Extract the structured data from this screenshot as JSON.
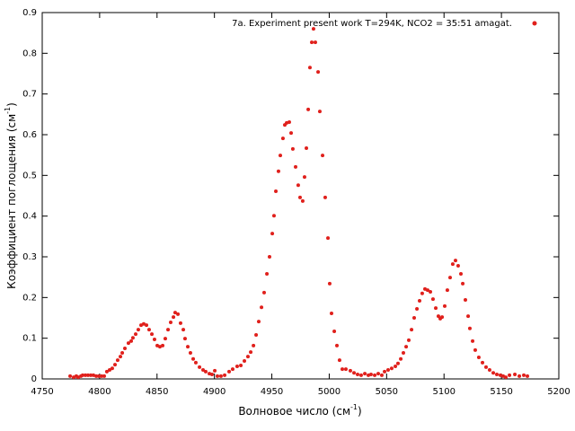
{
  "chart_data": {
    "type": "scatter",
    "xlabel": [
      "Волновое число (см",
      "-1",
      ")"
    ],
    "ylabel": [
      "Коэффициент поглощения (см",
      "-1",
      ")"
    ],
    "xlim": [
      4750,
      5200
    ],
    "ylim": [
      0,
      0.9
    ],
    "xticks": [
      4750,
      4800,
      4850,
      4900,
      4950,
      5000,
      5050,
      5100,
      5150,
      5200
    ],
    "yticks": [
      0,
      0.1,
      0.2,
      0.3,
      0.4,
      0.5,
      0.6,
      0.7,
      0.8,
      0.9
    ],
    "legend": "top-right",
    "series": [
      {
        "name": "7a. Experiment present work T=294K, NCO2 = 35:51 amagat.",
        "color": "#e0201c",
        "x": [
          4774.3,
          4777.4,
          4779.7,
          4781.3,
          4783.7,
          4785.2,
          4787.6,
          4789.9,
          4792.3,
          4794.6,
          4797.0,
          4799.3,
          4801.7,
          4804.0,
          4806.3,
          4808.7,
          4811.0,
          4813.4,
          4815.7,
          4818.1,
          4819.7,
          4822.0,
          4825.1,
          4827.5,
          4829.0,
          4831.4,
          4833.7,
          4836.1,
          4838.4,
          4840.8,
          4843.1,
          4845.5,
          4847.8,
          4850.2,
          4852.5,
          4854.9,
          4857.2,
          4859.6,
          4861.9,
          4864.3,
          4865.8,
          4868.2,
          4870.5,
          4872.9,
          4874.4,
          4876.8,
          4879.1,
          4881.5,
          4883.8,
          4887.0,
          4890.1,
          4892.4,
          4895.6,
          4897.9,
          4900.3,
          4902.6,
          4905.7,
          4908.9,
          4912.8,
          4915.9,
          4919.8,
          4923.0,
          4926.1,
          4929.2,
          4931.6,
          4934.0,
          4936.3,
          4938.6,
          4941.0,
          4943.3,
          4945.7,
          4948.0,
          4950.4,
          4951.9,
          4953.5,
          4955.8,
          4957.4,
          4959.7,
          4961.3,
          4962.9,
          4965.2,
          4966.8,
          4968.3,
          4970.7,
          4973.0,
          4974.6,
          4976.9,
          4978.5,
          4980.1,
          4981.7,
          4983.2,
          4984.8,
          4986.3,
          4987.9,
          4990.3,
          4991.8,
          4994.2,
          4996.5,
          4998.9,
          5000.4,
          5002.0,
          5004.4,
          5006.7,
          5009.0,
          5011.4,
          5014.5,
          5018.4,
          5021.6,
          5024.7,
          5027.8,
          5031.0,
          5034.1,
          5036.4,
          5039.6,
          5042.7,
          5045.8,
          5048.2,
          5051.3,
          5054.4,
          5057.6,
          5059.9,
          5062.3,
          5064.6,
          5067.0,
          5069.3,
          5071.7,
          5074.0,
          5076.4,
          5078.7,
          5081.0,
          5083.4,
          5085.7,
          5088.1,
          5090.4,
          5092.8,
          5095.1,
          5096.7,
          5098.3,
          5100.6,
          5102.9,
          5105.3,
          5107.6,
          5110.0,
          5112.3,
          5114.7,
          5116.3,
          5118.6,
          5121.0,
          5122.5,
          5124.9,
          5127.2,
          5130.3,
          5133.5,
          5136.6,
          5139.7,
          5142.9,
          5146.0,
          5149.1,
          5151.5,
          5153.8,
          5157.0,
          5161.7,
          5165.6,
          5169.5,
          5172.6
        ],
        "values": [
          0.007,
          0.004,
          0.007,
          0.004,
          0.007,
          0.009,
          0.009,
          0.009,
          0.009,
          0.009,
          0.007,
          0.007,
          0.007,
          0.007,
          0.018,
          0.022,
          0.026,
          0.035,
          0.046,
          0.055,
          0.064,
          0.075,
          0.088,
          0.093,
          0.101,
          0.11,
          0.121,
          0.132,
          0.135,
          0.132,
          0.121,
          0.11,
          0.097,
          0.082,
          0.079,
          0.082,
          0.099,
          0.121,
          0.139,
          0.152,
          0.163,
          0.159,
          0.137,
          0.121,
          0.099,
          0.079,
          0.064,
          0.049,
          0.04,
          0.029,
          0.022,
          0.018,
          0.013,
          0.011,
          0.02,
          0.007,
          0.007,
          0.009,
          0.018,
          0.024,
          0.031,
          0.033,
          0.044,
          0.055,
          0.066,
          0.082,
          0.108,
          0.141,
          0.176,
          0.212,
          0.258,
          0.3,
          0.357,
          0.401,
          0.461,
          0.51,
          0.549,
          0.591,
          0.624,
          0.629,
          0.631,
          0.604,
          0.565,
          0.521,
          0.476,
          0.446,
          0.437,
          0.496,
          0.567,
          0.662,
          0.765,
          0.827,
          0.86,
          0.827,
          0.754,
          0.657,
          0.549,
          0.446,
          0.346,
          0.234,
          0.161,
          0.117,
          0.082,
          0.046,
          0.024,
          0.024,
          0.02,
          0.015,
          0.011,
          0.009,
          0.013,
          0.009,
          0.011,
          0.009,
          0.013,
          0.009,
          0.018,
          0.022,
          0.026,
          0.031,
          0.038,
          0.049,
          0.064,
          0.079,
          0.095,
          0.121,
          0.15,
          0.172,
          0.192,
          0.21,
          0.221,
          0.218,
          0.214,
          0.196,
          0.174,
          0.154,
          0.148,
          0.152,
          0.179,
          0.218,
          0.249,
          0.282,
          0.291,
          0.278,
          0.258,
          0.234,
          0.194,
          0.154,
          0.124,
          0.093,
          0.071,
          0.053,
          0.04,
          0.029,
          0.022,
          0.015,
          0.011,
          0.009,
          0.007,
          0.004,
          0.009,
          0.011,
          0.007,
          0.009,
          0.007
        ]
      }
    ]
  }
}
